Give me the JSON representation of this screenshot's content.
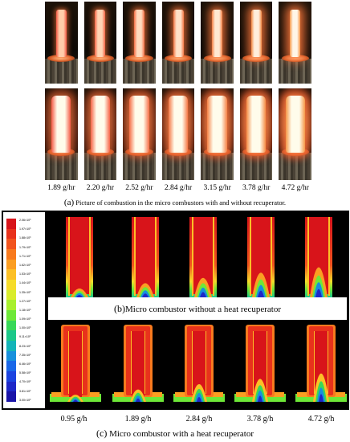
{
  "panel_a": {
    "tag": "(a)",
    "caption": "Picture of combustion in the micro combustors with and without recuperator.",
    "rates": [
      "1.89 g/hr",
      "2.20 g/hr",
      "2.52 g/hr",
      "2.84 g/hr",
      "3.15 g/hr",
      "3.78 g/hr",
      "4.72 g/hr"
    ]
  },
  "panel_b": {
    "tag": "(b)",
    "caption": "Micro combustor without a heat recuperator"
  },
  "panel_c": {
    "tag": "(c)",
    "caption": "Micro combustor with a heat recuperator",
    "rates": [
      "0.95 g/h",
      "1.89 g/h",
      "2.84 g/h",
      "3.78 g/h",
      "4.72 g/h"
    ]
  },
  "colorbar": {
    "colors": [
      "#d8141a",
      "#e8321c",
      "#f2541e",
      "#f87a1e",
      "#fb9e22",
      "#fcc026",
      "#f6dc2a",
      "#d8ec2c",
      "#a8f02e",
      "#6ee838",
      "#38d858",
      "#1cc88a",
      "#14b4b8",
      "#1890dc",
      "#1a68e8",
      "#1c44e0",
      "#1e28c8",
      "#1a14a8"
    ],
    "ticks": [
      "2.06×10³",
      "1.97×10³",
      "1.88×10³",
      "1.79×10³",
      "1.71×10³",
      "1.62×10³",
      "1.53×10³",
      "1.44×10³",
      "1.35×10³",
      "1.27×10³",
      "1.18×10³",
      "1.09×10³",
      "1.00×10³",
      "9.11×10²",
      "8.23×10²",
      "7.35×10²",
      "6.46×10²",
      "5.58×10²",
      "4.70×10²",
      "3.81×10²",
      "3.00×10²"
    ]
  }
}
